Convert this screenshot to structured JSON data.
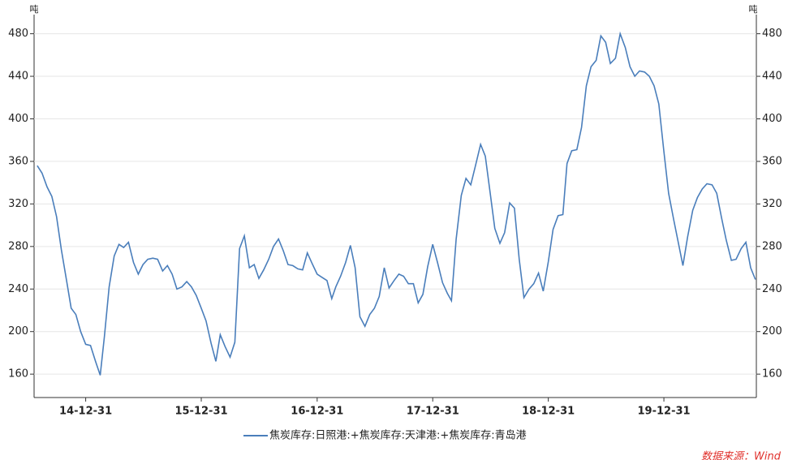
{
  "chart_data": {
    "type": "line",
    "y_unit": "吨",
    "y2_unit": "吨",
    "series": [
      {
        "name": "焦炭库存:日照港:+焦炭库存:天津港:+焦炭库存:青岛港",
        "color": "#4a7ebb",
        "values": [
          356,
          349,
          336,
          327,
          308,
          277,
          249,
          222,
          216,
          200,
          188,
          187,
          172,
          159,
          195,
          242,
          271,
          282,
          279,
          284,
          265,
          254,
          263,
          268,
          269,
          268,
          257,
          262,
          254,
          240,
          242,
          247,
          242,
          234,
          222,
          210,
          189,
          172,
          197,
          186,
          176,
          190,
          278,
          290,
          260,
          263,
          250,
          258,
          268,
          280,
          287,
          276,
          263,
          262,
          259,
          258,
          274,
          264,
          254,
          251,
          248,
          231,
          242,
          252,
          265,
          281,
          260,
          214,
          205,
          216,
          222,
          233,
          260,
          241,
          248,
          254,
          252,
          245,
          245,
          227,
          235,
          261,
          282,
          265,
          246,
          236,
          229,
          287,
          328,
          344,
          338,
          356,
          376,
          365,
          331,
          297,
          283,
          293,
          321,
          316,
          268,
          232,
          240,
          245,
          255,
          238,
          266,
          296,
          309,
          310,
          358,
          370,
          371,
          392,
          431,
          449,
          455,
          478,
          472,
          452,
          457,
          480,
          467,
          449,
          440,
          445,
          444,
          440,
          431,
          414,
          369,
          330,
          305,
          283,
          262,
          289,
          314,
          326,
          334,
          339,
          338,
          330,
          307,
          286,
          267,
          268,
          278,
          284,
          260,
          249
        ]
      }
    ],
    "x": [
      "14-07-31",
      "14-08-15",
      "14-08-31",
      "14-09-15",
      "14-09-30",
      "14-10-15",
      "14-10-31",
      "14-11-15",
      "14-11-30",
      "14-12-15",
      "14-12-31",
      "15-01-15",
      "15-01-31",
      "15-02-15",
      "15-02-28",
      "15-03-15",
      "15-03-31",
      "15-04-15",
      "15-04-30",
      "15-05-15",
      "15-05-31",
      "15-06-15",
      "15-06-30",
      "15-07-15",
      "15-07-31",
      "15-08-15",
      "15-08-31",
      "15-09-15",
      "15-09-30",
      "15-10-15",
      "15-10-31",
      "15-11-15",
      "15-11-30",
      "15-12-15",
      "15-12-31",
      "16-01-15",
      "16-01-31",
      "16-02-15",
      "16-02-29",
      "16-03-15",
      "16-03-31",
      "16-04-15",
      "16-04-30",
      "16-05-15",
      "16-05-31",
      "16-06-15",
      "16-06-30",
      "16-07-15",
      "16-07-31",
      "16-08-15",
      "16-08-31",
      "16-09-15",
      "16-09-30",
      "16-10-15",
      "16-10-31",
      "16-11-15",
      "16-11-30",
      "16-12-15",
      "16-12-31",
      "17-01-15",
      "17-01-31",
      "17-02-15",
      "17-02-28",
      "17-03-15",
      "17-03-31",
      "17-04-15",
      "17-04-30",
      "17-05-15",
      "17-05-31",
      "17-06-15",
      "17-06-30",
      "17-07-15",
      "17-07-31",
      "17-08-15",
      "17-08-31",
      "17-09-15",
      "17-09-30",
      "17-10-15",
      "17-10-31",
      "17-11-15",
      "17-11-30",
      "17-12-15",
      "17-12-31",
      "18-01-15",
      "18-01-31",
      "18-02-15",
      "18-02-28",
      "18-03-15",
      "18-03-31",
      "18-04-15",
      "18-04-30",
      "18-05-15",
      "18-05-31",
      "18-06-15",
      "18-06-30",
      "18-07-15",
      "18-07-31",
      "18-08-15",
      "18-08-31",
      "18-09-15",
      "18-09-30",
      "18-10-15",
      "18-10-31",
      "18-11-15",
      "18-11-30",
      "18-12-15",
      "18-12-31",
      "19-01-15",
      "19-01-31",
      "19-02-15",
      "19-02-28",
      "19-03-15",
      "19-03-31",
      "19-04-15",
      "19-04-30",
      "19-05-15",
      "19-05-31",
      "19-06-15",
      "19-06-30",
      "19-07-15",
      "19-07-31",
      "19-08-15",
      "19-08-31",
      "19-09-15",
      "19-09-30",
      "19-10-15",
      "19-10-31",
      "19-11-15",
      "19-11-30",
      "19-12-15",
      "19-12-31",
      "20-01-15",
      "20-01-31",
      "20-02-15",
      "20-02-29",
      "20-03-15",
      "20-03-31",
      "20-04-15",
      "20-04-30",
      "20-05-15",
      "20-05-31",
      "20-06-15",
      "20-06-30",
      "20-07-15",
      "20-07-31",
      "20-08-15",
      "20-08-31",
      "20-09-15",
      "20-09-30",
      "20-10-15"
    ],
    "xlim": [
      "14-07-21",
      "20-10-18"
    ],
    "xticks": [
      "14-12-31",
      "15-12-31",
      "16-12-31",
      "17-12-31",
      "18-12-31",
      "19-12-31"
    ],
    "ylim": [
      138,
      498
    ],
    "yticks": [
      160,
      200,
      240,
      280,
      320,
      360,
      400,
      440,
      480
    ],
    "y2lim": [
      138,
      498
    ],
    "y2ticks": [
      160,
      200,
      240,
      280,
      320,
      360,
      400,
      440,
      480
    ],
    "grid": true,
    "source": "数据来源：Wind"
  }
}
